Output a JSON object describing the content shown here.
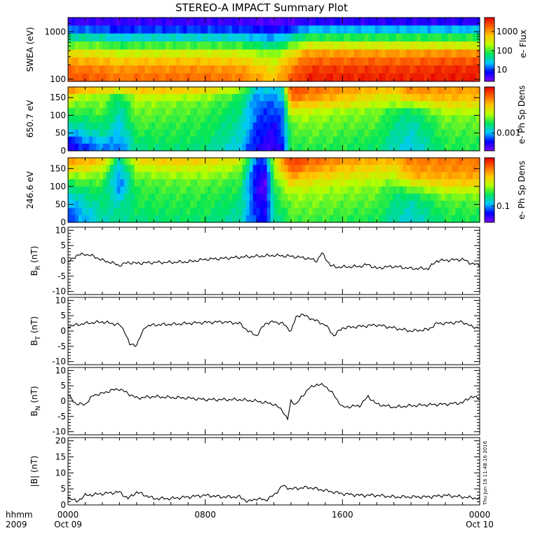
{
  "title": "STEREO-A IMPACT Summary Plot",
  "timestamp": "Thu Jun 16 11:48:16 2016",
  "time_axis": {
    "label_row1": "hhmm",
    "label_row2": "2009",
    "ticks": [
      {
        "hhmm": "0000",
        "date": "Oct 09",
        "hours": 0
      },
      {
        "hhmm": "0800",
        "date": "",
        "hours": 8
      },
      {
        "hhmm": "1600",
        "date": "",
        "hours": 16
      },
      {
        "hhmm": "0000",
        "date": "Oct 10",
        "hours": 24
      }
    ],
    "range_hours": [
      0,
      24
    ]
  },
  "colors": {
    "line": "#000000",
    "spectrogram_scale": [
      "#7f00ff",
      "#0000ff",
      "#00c8ff",
      "#00e65a",
      "#b4ff00",
      "#ffc800",
      "#ff6400",
      "#e60000"
    ]
  },
  "chart_data": [
    {
      "type": "heatmap",
      "ylabel": "SWEA (eV)",
      "y_scale": "log",
      "ylim": [
        90,
        2000
      ],
      "y_ticks": [
        "1000",
        "100"
      ],
      "colorbar_label": "e- Flux",
      "colorbar_ticks": [
        "1000",
        "100",
        "10"
      ],
      "x_hours": [
        0,
        2,
        3,
        4,
        6,
        8,
        10,
        11,
        12,
        13,
        14,
        16,
        18,
        20,
        22,
        24
      ],
      "row_energies": [
        1800,
        1200,
        800,
        500,
        300,
        200,
        130,
        100
      ],
      "levels": [
        [
          0.08,
          0.08,
          0.08,
          0.08,
          0.08,
          0.08,
          0.08,
          0.06,
          0.05,
          0.06,
          0.1,
          0.1,
          0.1,
          0.1,
          0.1,
          0.1
        ],
        [
          0.22,
          0.2,
          0.15,
          0.18,
          0.18,
          0.18,
          0.18,
          0.15,
          0.12,
          0.18,
          0.28,
          0.28,
          0.28,
          0.28,
          0.28,
          0.28
        ],
        [
          0.38,
          0.35,
          0.3,
          0.33,
          0.33,
          0.33,
          0.32,
          0.28,
          0.25,
          0.35,
          0.45,
          0.45,
          0.45,
          0.45,
          0.45,
          0.45
        ],
        [
          0.52,
          0.5,
          0.45,
          0.48,
          0.48,
          0.48,
          0.47,
          0.42,
          0.38,
          0.5,
          0.62,
          0.62,
          0.62,
          0.62,
          0.62,
          0.62
        ],
        [
          0.66,
          0.64,
          0.6,
          0.62,
          0.62,
          0.62,
          0.61,
          0.56,
          0.52,
          0.65,
          0.78,
          0.78,
          0.78,
          0.78,
          0.8,
          0.8
        ],
        [
          0.76,
          0.74,
          0.7,
          0.72,
          0.72,
          0.72,
          0.7,
          0.65,
          0.6,
          0.75,
          0.86,
          0.86,
          0.86,
          0.86,
          0.88,
          0.88
        ],
        [
          0.84,
          0.82,
          0.78,
          0.8,
          0.8,
          0.8,
          0.78,
          0.72,
          0.66,
          0.82,
          0.92,
          0.92,
          0.92,
          0.92,
          0.94,
          0.94
        ],
        [
          0.88,
          0.86,
          0.82,
          0.84,
          0.84,
          0.84,
          0.82,
          0.76,
          0.7,
          0.86,
          0.95,
          0.95,
          0.95,
          0.95,
          0.96,
          0.96
        ]
      ]
    },
    {
      "type": "heatmap",
      "ylabel": "650.7 eV",
      "ylim": [
        0,
        180
      ],
      "y_ticks": [
        0,
        50,
        100,
        150
      ],
      "colorbar_label": "e- Ph Sp Dens",
      "colorbar_ticks": [
        "0.001"
      ],
      "x_hours": [
        0,
        1,
        2,
        3,
        4,
        6,
        8,
        10,
        11,
        12,
        12.5,
        13,
        14,
        16,
        18,
        19,
        20,
        22,
        24
      ],
      "row_pitch": [
        170,
        150,
        130,
        110,
        90,
        70,
        50,
        30,
        10
      ],
      "levels": [
        [
          0.78,
          0.72,
          0.68,
          0.62,
          0.7,
          0.7,
          0.68,
          0.55,
          0.3,
          0.3,
          0.35,
          0.9,
          0.85,
          0.78,
          0.72,
          0.7,
          0.8,
          0.78,
          0.76
        ],
        [
          0.65,
          0.55,
          0.55,
          0.42,
          0.6,
          0.58,
          0.55,
          0.45,
          0.25,
          0.25,
          0.3,
          0.85,
          0.8,
          0.72,
          0.65,
          0.62,
          0.72,
          0.74,
          0.72
        ],
        [
          0.55,
          0.5,
          0.52,
          0.38,
          0.55,
          0.52,
          0.5,
          0.42,
          0.22,
          0.2,
          0.25,
          0.72,
          0.7,
          0.65,
          0.58,
          0.55,
          0.55,
          0.66,
          0.65
        ],
        [
          0.48,
          0.46,
          0.5,
          0.35,
          0.52,
          0.5,
          0.48,
          0.4,
          0.2,
          0.18,
          0.22,
          0.62,
          0.6,
          0.55,
          0.52,
          0.45,
          0.42,
          0.58,
          0.58
        ],
        [
          0.42,
          0.42,
          0.45,
          0.33,
          0.5,
          0.48,
          0.46,
          0.38,
          0.2,
          0.15,
          0.22,
          0.55,
          0.55,
          0.52,
          0.5,
          0.42,
          0.38,
          0.52,
          0.52
        ],
        [
          0.35,
          0.38,
          0.42,
          0.3,
          0.48,
          0.46,
          0.45,
          0.36,
          0.18,
          0.12,
          0.2,
          0.5,
          0.52,
          0.5,
          0.48,
          0.4,
          0.35,
          0.5,
          0.5
        ],
        [
          0.25,
          0.32,
          0.38,
          0.28,
          0.45,
          0.45,
          0.44,
          0.35,
          0.16,
          0.1,
          0.2,
          0.48,
          0.5,
          0.48,
          0.46,
          0.38,
          0.34,
          0.48,
          0.48
        ],
        [
          0.15,
          0.25,
          0.3,
          0.25,
          0.42,
          0.44,
          0.42,
          0.33,
          0.15,
          0.08,
          0.18,
          0.46,
          0.48,
          0.46,
          0.44,
          0.36,
          0.32,
          0.46,
          0.46
        ],
        [
          0.1,
          0.18,
          0.25,
          0.22,
          0.4,
          0.42,
          0.4,
          0.3,
          0.12,
          0.06,
          0.15,
          0.45,
          0.46,
          0.45,
          0.42,
          0.35,
          0.3,
          0.45,
          0.45
        ]
      ]
    },
    {
      "type": "heatmap",
      "ylabel": "246.6 eV",
      "ylim": [
        0,
        180
      ],
      "y_ticks": [
        0,
        50,
        100,
        150
      ],
      "colorbar_label": "e- Ph Sp Dens",
      "colorbar_ticks": [
        "0.1"
      ],
      "x_hours": [
        0,
        1,
        2,
        3,
        4,
        6,
        8,
        10,
        11,
        11.5,
        12,
        13,
        14,
        16,
        18,
        19,
        20,
        22,
        24
      ],
      "row_pitch": [
        170,
        150,
        130,
        110,
        90,
        70,
        50,
        30,
        10
      ],
      "levels": [
        [
          0.76,
          0.74,
          0.7,
          0.35,
          0.66,
          0.7,
          0.68,
          0.62,
          0.2,
          0.18,
          0.6,
          0.92,
          0.86,
          0.78,
          0.74,
          0.72,
          0.82,
          0.82,
          0.82
        ],
        [
          0.68,
          0.66,
          0.6,
          0.28,
          0.58,
          0.62,
          0.6,
          0.55,
          0.15,
          0.12,
          0.55,
          0.88,
          0.8,
          0.72,
          0.68,
          0.66,
          0.78,
          0.8,
          0.8
        ],
        [
          0.55,
          0.55,
          0.52,
          0.25,
          0.52,
          0.55,
          0.55,
          0.5,
          0.12,
          0.08,
          0.5,
          0.78,
          0.72,
          0.66,
          0.62,
          0.6,
          0.74,
          0.76,
          0.76
        ],
        [
          0.45,
          0.48,
          0.48,
          0.22,
          0.48,
          0.5,
          0.5,
          0.46,
          0.1,
          0.06,
          0.46,
          0.68,
          0.64,
          0.6,
          0.56,
          0.52,
          0.62,
          0.7,
          0.7
        ],
        [
          0.38,
          0.42,
          0.44,
          0.25,
          0.46,
          0.48,
          0.48,
          0.44,
          0.1,
          0.06,
          0.44,
          0.6,
          0.58,
          0.55,
          0.52,
          0.45,
          0.5,
          0.6,
          0.6
        ],
        [
          0.3,
          0.38,
          0.42,
          0.3,
          0.45,
          0.46,
          0.46,
          0.42,
          0.12,
          0.08,
          0.42,
          0.55,
          0.54,
          0.52,
          0.5,
          0.42,
          0.4,
          0.52,
          0.52
        ],
        [
          0.25,
          0.34,
          0.4,
          0.35,
          0.44,
          0.45,
          0.45,
          0.4,
          0.14,
          0.1,
          0.4,
          0.52,
          0.52,
          0.5,
          0.48,
          0.4,
          0.36,
          0.48,
          0.48
        ],
        [
          0.2,
          0.3,
          0.38,
          0.38,
          0.42,
          0.44,
          0.44,
          0.38,
          0.15,
          0.12,
          0.38,
          0.5,
          0.5,
          0.48,
          0.46,
          0.38,
          0.34,
          0.46,
          0.46
        ],
        [
          0.18,
          0.28,
          0.36,
          0.38,
          0.4,
          0.42,
          0.42,
          0.36,
          0.16,
          0.14,
          0.36,
          0.48,
          0.48,
          0.46,
          0.44,
          0.36,
          0.32,
          0.44,
          0.44
        ]
      ]
    },
    {
      "type": "line",
      "ylabel": "B",
      "ylabel_sub": "R",
      "ylabel_unit": "(nT)",
      "ylim": [
        -11,
        11
      ],
      "y_ticks": [
        -10,
        -5,
        0,
        5,
        10
      ],
      "x": [
        0,
        0.5,
        1,
        1.5,
        2,
        2.5,
        3,
        3.5,
        4,
        5,
        6,
        7,
        8,
        9,
        10,
        11,
        12,
        13,
        14,
        14.5,
        14.8,
        15,
        15.3,
        15.6,
        16,
        17,
        17.5,
        18,
        18.5,
        19,
        20,
        21,
        21.5,
        22,
        23,
        23.5,
        24
      ],
      "values": [
        -0.5,
        1.8,
        2.2,
        1.5,
        0.2,
        -0.5,
        -1.5,
        -0.5,
        -0.8,
        -0.5,
        -0.5,
        -0.3,
        0.5,
        0.8,
        1.2,
        1.5,
        1.8,
        1.5,
        0.8,
        0,
        2.5,
        1.0,
        -1.5,
        -2.0,
        -2.0,
        -1.8,
        -1.2,
        -2.5,
        -2.0,
        -1.8,
        -2.5,
        -2.5,
        0.0,
        0.2,
        0.5,
        -0.8,
        -1.5
      ]
    },
    {
      "type": "line",
      "ylabel": "B",
      "ylabel_sub": "T",
      "ylabel_unit": "(nT)",
      "ylim": [
        -11,
        11
      ],
      "y_ticks": [
        -10,
        -5,
        0,
        5,
        10
      ],
      "x": [
        0,
        1,
        2,
        3,
        3.3,
        3.6,
        4,
        4.5,
        5,
        6,
        7,
        8,
        9,
        10,
        10.5,
        11,
        11.5,
        12,
        12.5,
        13,
        13.3,
        13.6,
        14,
        15,
        15.5,
        16,
        17,
        18,
        19,
        20,
        21,
        21.5,
        22,
        23,
        23.5,
        24
      ],
      "values": [
        1.5,
        2.5,
        3.0,
        2.0,
        0.0,
        -4.5,
        -4.5,
        1.5,
        2.0,
        2.2,
        2.5,
        2.8,
        3.0,
        2.5,
        0.0,
        -1.5,
        2.5,
        3.0,
        2.5,
        0.0,
        4.5,
        5.5,
        4.5,
        2.0,
        -1.5,
        1.0,
        1.5,
        2.0,
        1.0,
        0.0,
        0.5,
        2.5,
        2.5,
        3.0,
        1.5,
        1.0
      ]
    },
    {
      "type": "line",
      "ylabel": "B",
      "ylabel_sub": "N",
      "ylabel_unit": "(nT)",
      "ylim": [
        -11,
        11
      ],
      "y_ticks": [
        -10,
        -5,
        0,
        5,
        10
      ],
      "x": [
        0,
        0.5,
        1,
        1.5,
        2,
        2.5,
        3,
        3.5,
        4,
        5,
        6,
        7,
        8,
        9,
        10,
        11,
        12,
        12.5,
        12.8,
        13,
        13.3,
        14,
        14.5,
        15,
        15.5,
        16,
        17,
        17.5,
        18,
        19,
        20,
        21,
        22,
        23,
        23.5,
        24
      ],
      "values": [
        2.0,
        -1.0,
        -1.0,
        2.0,
        2.5,
        3.5,
        4.0,
        2.5,
        1.0,
        1.5,
        1.2,
        1.0,
        0.5,
        0.5,
        0.5,
        0.0,
        -1.0,
        -3.0,
        -6.0,
        0.0,
        -1.0,
        4.0,
        5.5,
        5.0,
        2.0,
        -2.0,
        -1.5,
        1.5,
        -1.0,
        -2.0,
        -1.5,
        -1.2,
        -1.0,
        -0.5,
        1.5,
        0.8
      ]
    },
    {
      "type": "line",
      "ylabel": "|B|",
      "ylabel_unit": "(nT)",
      "ylim": [
        0,
        21
      ],
      "y_ticks": [
        0,
        5,
        10,
        15,
        20
      ],
      "x": [
        0,
        0.5,
        1,
        2,
        3,
        3.5,
        4,
        5,
        6,
        7,
        8,
        9,
        10,
        10.5,
        11,
        11.5,
        12,
        12.5,
        13,
        14,
        15,
        16,
        17,
        18,
        19,
        20,
        21,
        22,
        23,
        24
      ],
      "values": [
        2.5,
        1.0,
        3.0,
        3.5,
        4.0,
        2.0,
        4.0,
        2.0,
        2.0,
        2.5,
        3.0,
        2.5,
        2.5,
        1.0,
        2.0,
        1.5,
        3.0,
        6.0,
        5.0,
        5.5,
        4.5,
        3.5,
        3.0,
        3.0,
        2.5,
        2.5,
        2.5,
        3.0,
        2.5,
        2.0
      ]
    }
  ]
}
